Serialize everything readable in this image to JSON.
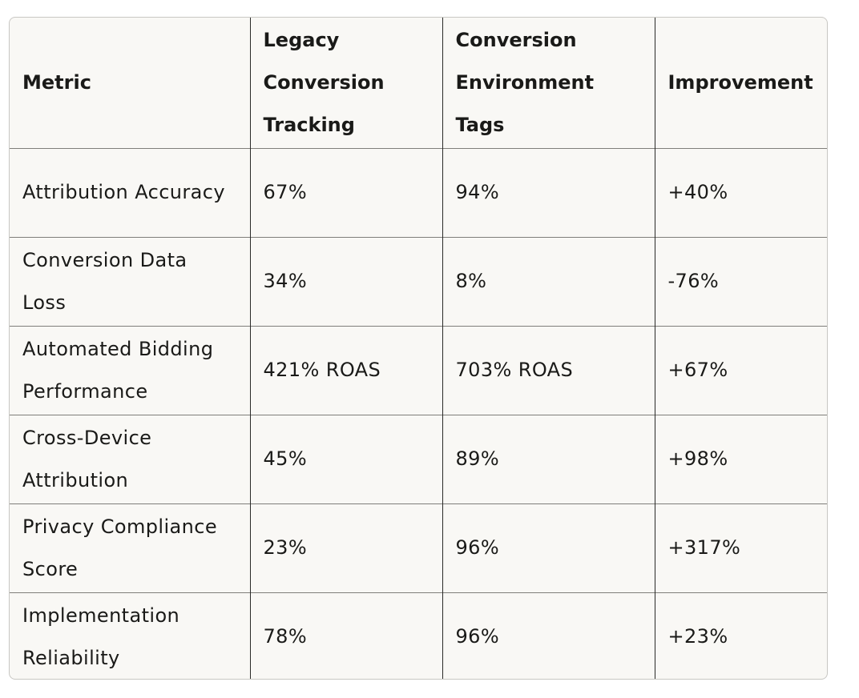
{
  "table": {
    "headers": [
      "Metric",
      "Legacy Conversion Tracking",
      "Conversion Environment Tags",
      "Improvement"
    ],
    "rows": [
      [
        "Attribution Accuracy",
        "67%",
        "94%",
        "+40%"
      ],
      [
        "Conversion Data Loss",
        "34%",
        "8%",
        "-76%"
      ],
      [
        "Automated Bidding Performance",
        "421% ROAS",
        "703% ROAS",
        "+67%"
      ],
      [
        "Cross-Device Attribution",
        "45%",
        "89%",
        "+98%"
      ],
      [
        "Privacy Compliance Score",
        "23%",
        "96%",
        "+317%"
      ],
      [
        "Implementation Reliability",
        "78%",
        "96%",
        "+23%"
      ]
    ]
  }
}
